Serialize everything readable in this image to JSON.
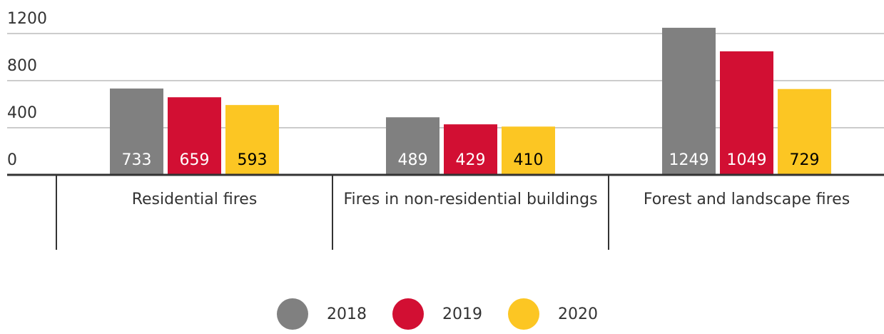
{
  "chart_data": {
    "type": "bar",
    "categories": [
      "Residential fires",
      "Fires in non-residential buildings",
      "Forest and landscape fires"
    ],
    "series": [
      {
        "name": "2018",
        "color": "#808080",
        "values": [
          733,
          489,
          1249
        ]
      },
      {
        "name": "2019",
        "color": "#d20f33",
        "values": [
          659,
          429,
          1049
        ]
      },
      {
        "name": "2020",
        "color": "#fcc623",
        "values": [
          593,
          410,
          729
        ]
      }
    ],
    "ylim": [
      0,
      1300
    ],
    "yticks": [
      0,
      400,
      800,
      1200
    ],
    "grid": true
  }
}
